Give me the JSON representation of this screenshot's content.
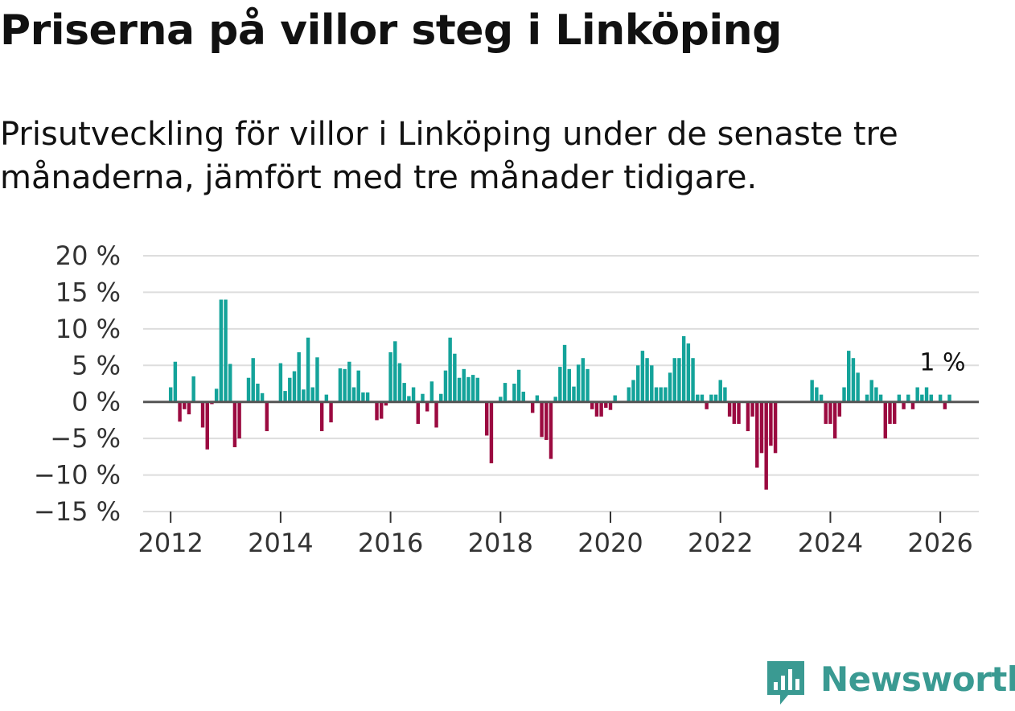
{
  "header": {
    "title": "Priserna på villor steg i Linköping",
    "subtitle": "Prisutveckling för villor i Linköping under de senaste tre månaderna, jämfört med tre månader tidigare."
  },
  "brand": {
    "name": "Newsworthy"
  },
  "colors": {
    "positive": "#14a39a",
    "negative": "#9b0a40",
    "grid": "#dddddd",
    "zero_line": "#555555",
    "brand": "#3a9a92"
  },
  "chart_data": {
    "type": "bar",
    "title": "Priserna på villor steg i Linköping",
    "xlabel": "",
    "ylabel": "",
    "ylim": [
      -15,
      20
    ],
    "xlim": [
      2011.5,
      2026.7
    ],
    "y_ticks": [
      20,
      15,
      10,
      5,
      0,
      -5,
      -10,
      -15
    ],
    "y_tick_labels": [
      "20 %",
      "15 %",
      "10 %",
      "5 %",
      "0 %",
      "−5 %",
      "−10 %",
      "−15 %"
    ],
    "x_ticks": [
      2012,
      2014,
      2016,
      2018,
      2020,
      2022,
      2024,
      2026
    ],
    "x_tick_labels": [
      "2012",
      "2014",
      "2016",
      "2018",
      "2020",
      "2022",
      "2024",
      "2026"
    ],
    "start": [
      2012,
      1
    ],
    "values": [
      2,
      5.5,
      -2.7,
      -1,
      -1.7,
      3.5,
      0,
      -3.5,
      -6.5,
      -0.3,
      1.8,
      14,
      14,
      5.2,
      -6.2,
      -5,
      0,
      3.3,
      6,
      2.5,
      1.2,
      -4,
      0,
      0,
      5.3,
      1.5,
      3.3,
      4.2,
      6.8,
      1.7,
      8.8,
      2,
      6.1,
      -4,
      1,
      -2.8,
      0,
      4.6,
      4.5,
      5.5,
      2,
      4.3,
      1.3,
      1.3,
      0,
      -2.5,
      -2.3,
      -0.5,
      6.8,
      8.3,
      5.3,
      2.6,
      0.8,
      2,
      -3,
      1.1,
      -1.3,
      2.8,
      -3.5,
      1.1,
      4.3,
      8.8,
      6.6,
      3.3,
      4.5,
      3.4,
      3.7,
      3.3,
      0,
      -4.6,
      -8.4,
      0,
      0.7,
      2.6,
      0.2,
      2.5,
      4.4,
      1.4,
      0,
      -1.5,
      0.9,
      -4.8,
      -5.2,
      -7.8,
      0.7,
      4.8,
      7.8,
      4.5,
      2.1,
      5.1,
      6,
      4.5,
      -1,
      -2,
      -2,
      -0.8,
      -1.1,
      0.9,
      0,
      0,
      2,
      3,
      5,
      7,
      6,
      5,
      2,
      2,
      2,
      4,
      6,
      6,
      9,
      8,
      6,
      1,
      1,
      -1,
      1,
      1,
      3,
      2,
      -2,
      -3,
      -3,
      0,
      -4,
      -2,
      -9,
      -7,
      -12,
      -6,
      -7,
      0,
      0,
      0,
      0,
      0,
      0,
      0,
      3,
      2,
      1,
      -3,
      -3,
      -5,
      -2,
      2,
      7,
      6,
      4,
      0,
      1,
      3,
      2,
      1,
      -5,
      -3,
      -3,
      1,
      -1,
      1,
      -1,
      2,
      1,
      2,
      1,
      0,
      1,
      -1,
      1
    ],
    "annotation": {
      "label": "1 %",
      "series_value": 1
    }
  }
}
